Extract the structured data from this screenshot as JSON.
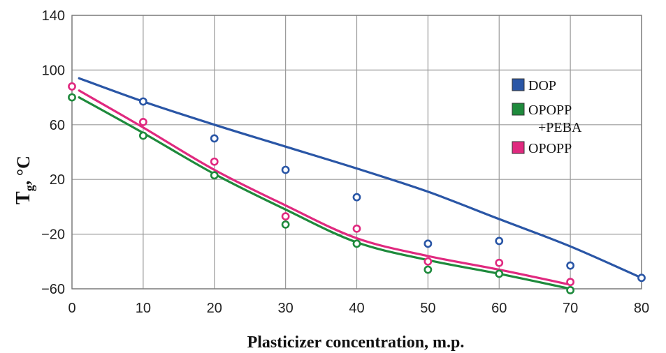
{
  "chart_data": {
    "type": "scatter",
    "xlabel": "Plasticizer concentration, m.p.",
    "ylabel": "T",
    "ylabel_sub": "g",
    "ylabel_suffix": ", °C",
    "xlim": [
      0,
      80
    ],
    "ylim": [
      -60,
      140
    ],
    "xticks": [
      0,
      10,
      20,
      30,
      40,
      50,
      60,
      70,
      80
    ],
    "yticks": [
      -60,
      -20,
      20,
      60,
      100,
      140
    ],
    "ytick_labels": [
      "−60",
      "−20",
      "20",
      "60",
      "100",
      "140"
    ],
    "grid": true,
    "legend_position": "right",
    "series": [
      {
        "name": "DOP",
        "color": "#2a56a6",
        "points": [
          [
            10,
            77
          ],
          [
            20,
            50
          ],
          [
            30,
            27
          ],
          [
            40,
            7
          ],
          [
            50,
            -27
          ],
          [
            60,
            -25
          ],
          [
            70,
            -43
          ],
          [
            80,
            -52
          ]
        ],
        "fit": [
          [
            1,
            94
          ],
          [
            10,
            77
          ],
          [
            20,
            60
          ],
          [
            30,
            44
          ],
          [
            40,
            28
          ],
          [
            50,
            11
          ],
          [
            60,
            -9
          ],
          [
            70,
            -29
          ],
          [
            80,
            -52
          ]
        ]
      },
      {
        "name": "OPOPP\n+PEBA",
        "color": "#1e8a3c",
        "points": [
          [
            0,
            80
          ],
          [
            10,
            52
          ],
          [
            20,
            23
          ],
          [
            30,
            -13
          ],
          [
            40,
            -27
          ],
          [
            50,
            -46
          ],
          [
            60,
            -49
          ],
          [
            70,
            -61
          ]
        ],
        "fit": [
          [
            1,
            80
          ],
          [
            10,
            54
          ],
          [
            20,
            24
          ],
          [
            30,
            -2
          ],
          [
            40,
            -26
          ],
          [
            50,
            -39
          ],
          [
            60,
            -49
          ],
          [
            70,
            -60
          ]
        ]
      },
      {
        "name": "OPOPP",
        "color": "#e0297f",
        "points": [
          [
            0,
            88
          ],
          [
            10,
            62
          ],
          [
            20,
            33
          ],
          [
            30,
            -7
          ],
          [
            40,
            -16
          ],
          [
            50,
            -40
          ],
          [
            60,
            -41
          ],
          [
            70,
            -55
          ]
        ],
        "fit": [
          [
            1,
            85
          ],
          [
            10,
            58
          ],
          [
            20,
            27
          ],
          [
            30,
            1
          ],
          [
            40,
            -23
          ],
          [
            50,
            -36
          ],
          [
            60,
            -46
          ],
          [
            70,
            -57
          ]
        ]
      }
    ]
  }
}
